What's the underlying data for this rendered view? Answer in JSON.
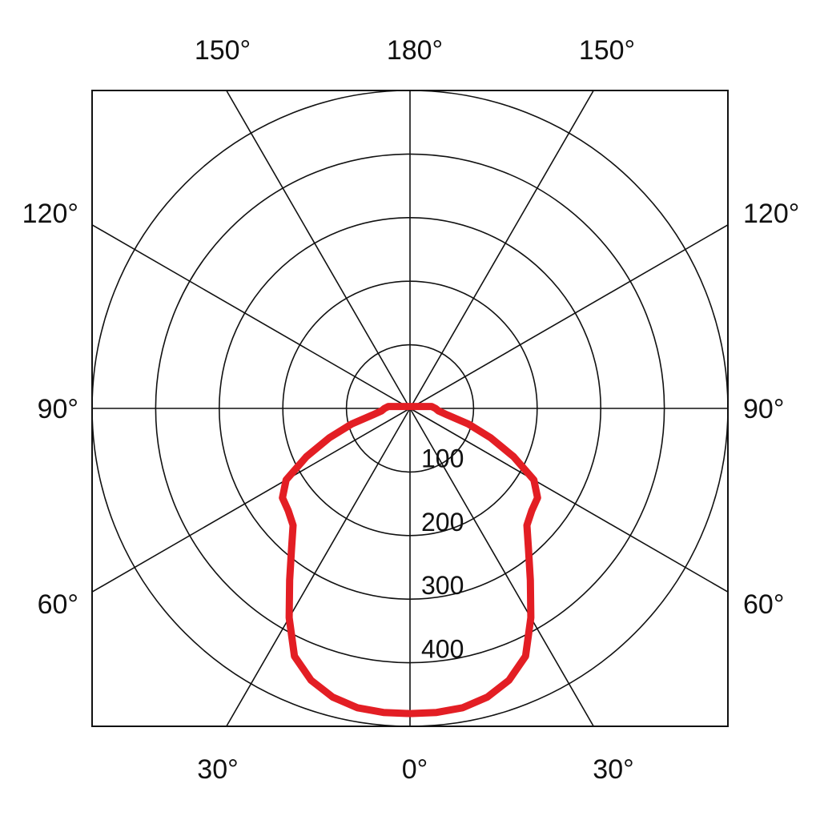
{
  "chart_data": {
    "type": "polar",
    "angle_unit": "degrees",
    "zero_direction": "bottom",
    "angle_labels": {
      "bottom": [
        "30°",
        "0°",
        "30°"
      ],
      "top": [
        "150°",
        "180°",
        "150°"
      ],
      "left": [
        "120°",
        "90°",
        "60°"
      ],
      "right": [
        "120°",
        "90°",
        "60°"
      ]
    },
    "radial_ticks": [
      100,
      200,
      300,
      400,
      500
    ],
    "radial_tick_labels": [
      "100",
      "200",
      "300",
      "400"
    ],
    "rmax": 500,
    "angle_gridlines_deg": [
      0,
      30,
      60,
      90,
      120,
      150,
      180,
      210,
      240,
      270,
      300,
      330
    ],
    "grid": true,
    "frame": "square",
    "series": [
      {
        "color": "#e31e24",
        "symmetric": true,
        "angles": [
          0,
          5,
          10,
          15,
          20,
          25,
          30,
          35,
          40,
          45,
          50,
          55,
          60,
          65,
          70,
          75,
          80,
          85,
          90,
          95
        ],
        "values": [
          480,
          480,
          478,
          470,
          455,
          430,
          380,
          330,
          290,
          260,
          250,
          245,
          225,
          180,
          135,
          95,
          60,
          45,
          40,
          34
        ]
      }
    ]
  }
}
